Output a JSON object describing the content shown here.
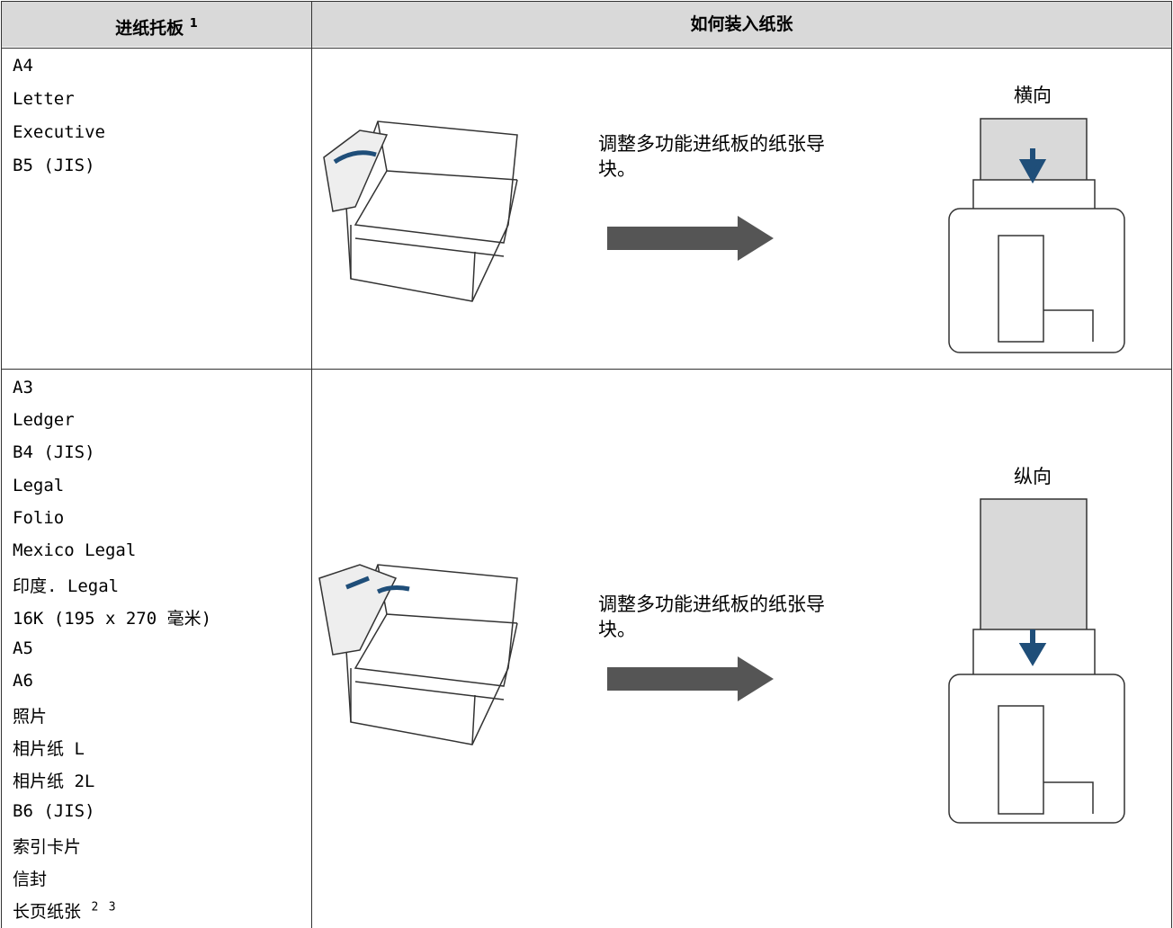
{
  "table": {
    "headers": [
      {
        "text": "进纸托板",
        "note": "1"
      },
      {
        "text": "如何装入纸张"
      }
    ],
    "rows": [
      {
        "sizes": [
          "A4",
          "Letter",
          "Executive",
          "B5 (JIS)"
        ],
        "instruction": "调整多功能进纸板的纸张导块。",
        "orientation": "横向"
      },
      {
        "sizes": [
          "A3",
          "Ledger",
          "B4 (JIS)",
          "Legal",
          "Folio",
          "Mexico Legal",
          "印度. Legal",
          "16K (195 x 270 毫米)",
          "A5",
          "A6",
          "照片",
          "相片纸 L",
          "相片纸 2L",
          "B6 (JIS)",
          "索引卡片",
          "信封",
          {
            "text": "长页纸张",
            "notes": [
              "2",
              "3"
            ]
          }
        ],
        "instruction": "调整多功能进纸板的纸张导块。",
        "orientation": "纵向"
      }
    ]
  }
}
